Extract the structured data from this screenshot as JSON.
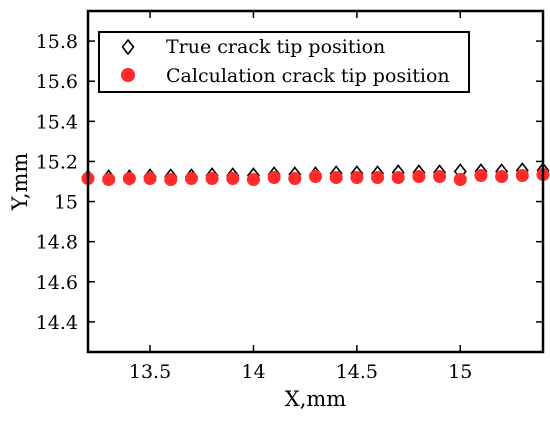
{
  "chart_data": {
    "type": "scatter",
    "xlabel": "X,mm",
    "ylabel": "Y,mm",
    "xlim": [
      13.2,
      15.4
    ],
    "ylim": [
      14.25,
      15.95
    ],
    "xticks": [
      13.5,
      14,
      14.5,
      15
    ],
    "xtick_labels": [
      "13.5",
      "14",
      "14.5",
      "15"
    ],
    "yticks": [
      14.4,
      14.6,
      14.8,
      15,
      15.2,
      15.4,
      15.6,
      15.8
    ],
    "ytick_labels": [
      "14.4",
      "14.6",
      "14.8",
      "15",
      "15.2",
      "15.4",
      "15.6",
      "15.8"
    ],
    "grid": false,
    "legend_position": "top-left",
    "series": [
      {
        "name": "True crack tip position",
        "marker": "diamond-open",
        "color": "#000000",
        "x": [
          13.2,
          13.3,
          13.4,
          13.5,
          13.6,
          13.7,
          13.8,
          13.9,
          14.0,
          14.1,
          14.2,
          14.3,
          14.4,
          14.5,
          14.6,
          14.7,
          14.8,
          14.9,
          15.0,
          15.1,
          15.2,
          15.3,
          15.4
        ],
        "y": [
          15.12,
          15.12,
          15.12,
          15.125,
          15.125,
          15.125,
          15.13,
          15.13,
          15.13,
          15.135,
          15.135,
          15.135,
          15.14,
          15.14,
          15.14,
          15.145,
          15.145,
          15.145,
          15.15,
          15.15,
          15.15,
          15.155,
          15.155
        ]
      },
      {
        "name": "Calculation crack tip position",
        "marker": "circle-filled",
        "color": "#ff2a2a",
        "x": [
          13.2,
          13.3,
          13.4,
          13.5,
          13.6,
          13.7,
          13.8,
          13.9,
          14.0,
          14.1,
          14.2,
          14.3,
          14.4,
          14.5,
          14.6,
          14.7,
          14.8,
          14.9,
          15.0,
          15.1,
          15.2,
          15.3,
          15.4
        ],
        "y": [
          15.115,
          15.11,
          15.115,
          15.115,
          15.11,
          15.115,
          15.115,
          15.115,
          15.11,
          15.12,
          15.115,
          15.125,
          15.12,
          15.12,
          15.12,
          15.12,
          15.125,
          15.125,
          15.11,
          15.13,
          15.125,
          15.13,
          15.135
        ]
      }
    ]
  }
}
